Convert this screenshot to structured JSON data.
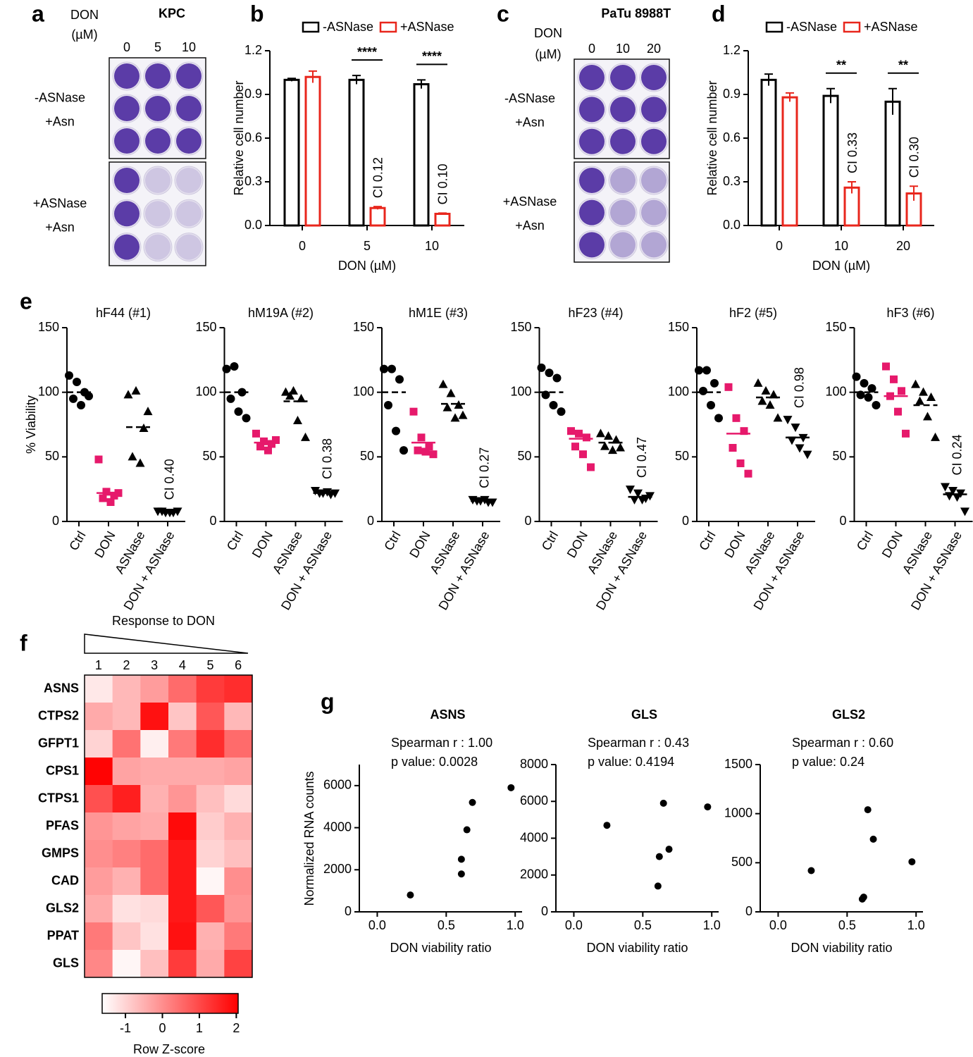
{
  "plates": [
    {
      "panel": "a",
      "title": "KPC",
      "dose_label": [
        "DON",
        "(µM)"
      ],
      "doses": [
        "0",
        "5",
        "10"
      ],
      "conditions": [
        [
          "-ASNase",
          "+Asn"
        ],
        [
          "+ASNase",
          "+Asn"
        ]
      ]
    },
    {
      "panel": "c",
      "title": "PaTu 8988T",
      "dose_label": [
        "DON",
        "(µM)"
      ],
      "doses": [
        "0",
        "10",
        "20"
      ],
      "conditions": [
        [
          "-ASNase",
          "+Asn"
        ],
        [
          "+ASNase",
          "+Asn"
        ]
      ]
    }
  ],
  "chart_data": [
    {
      "type": "bar",
      "panel": "b",
      "xlabel": "DON (µM)",
      "ylabel": "Relative cell number",
      "legend": "top",
      "categories": [
        "0",
        "5",
        "10"
      ],
      "ylim": [
        0,
        1.2
      ],
      "yticks": [
        {
          "value": 0,
          "label": "0.0"
        },
        0.3,
        0.6,
        0.9,
        1.2
      ],
      "significance": [
        null,
        "****",
        "****"
      ],
      "series": [
        {
          "name": "-ASNase",
          "color": "#000000",
          "values": [
            1.0,
            1.0,
            0.97
          ],
          "errors": [
            0.01,
            0.03,
            0.03
          ],
          "ci_labels": [
            null,
            null,
            null
          ]
        },
        {
          "name": "+ASNase",
          "color": "#e8261c",
          "values": [
            1.02,
            0.12,
            0.08
          ],
          "errors": [
            0.04,
            0.01,
            0.005
          ],
          "ci_labels": [
            null,
            "CI 0.12",
            "CI 0.10"
          ]
        }
      ]
    },
    {
      "type": "bar",
      "panel": "d",
      "xlabel": "DON (µM)",
      "ylabel": "Relative cell number",
      "legend": "top",
      "categories": [
        "0",
        "10",
        "20"
      ],
      "ylim": [
        0,
        1.2
      ],
      "yticks": [
        {
          "value": 0,
          "label": "0.0"
        },
        0.3,
        0.6,
        0.9,
        1.2
      ],
      "significance": [
        null,
        "**",
        "**"
      ],
      "series": [
        {
          "name": "-ASNase",
          "color": "#000000",
          "values": [
            1.0,
            0.89,
            0.85
          ],
          "errors": [
            0.04,
            0.05,
            0.09
          ],
          "ci_labels": [
            null,
            null,
            null
          ]
        },
        {
          "name": "+ASNase",
          "color": "#e8261c",
          "values": [
            0.88,
            0.26,
            0.22
          ],
          "errors": [
            0.03,
            0.04,
            0.05
          ],
          "ci_labels": [
            null,
            "CI 0.33",
            "CI 0.30"
          ]
        }
      ]
    },
    {
      "type": "strip",
      "panel": "e",
      "title": "hF44 (#1)",
      "ylabel": "% Viability",
      "categories": [
        "Ctrl",
        "DON",
        "ASNase",
        "DON + ASNase"
      ],
      "ylim": [
        0,
        150
      ],
      "yticks": [
        0,
        50,
        100,
        150
      ],
      "colors": [
        "#000000",
        "#e6196b",
        "#000000",
        "#000000"
      ],
      "markers": [
        "circle",
        "square",
        "triangle",
        "triangle-down"
      ],
      "values": [
        [
          113,
          108,
          100,
          95,
          90,
          97
        ],
        [
          48,
          23,
          20,
          18,
          15,
          22
        ],
        [
          98,
          101,
          72,
          50,
          45,
          85
        ],
        [
          8,
          7,
          7,
          8,
          7,
          8
        ]
      ],
      "means": [
        100,
        22,
        73,
        7.5
      ],
      "ci_label": "CI 0.40"
    },
    {
      "type": "strip",
      "title": "hM19A (#2)",
      "categories": [
        "Ctrl",
        "DON",
        "ASNase",
        "DON + ASNase"
      ],
      "ylim": [
        0,
        150
      ],
      "yticks": [
        0,
        50,
        100,
        150
      ],
      "colors": [
        "#000000",
        "#e6196b",
        "#000000",
        "#000000"
      ],
      "markers": [
        "circle",
        "square",
        "triangle",
        "triangle-down"
      ],
      "values": [
        [
          118,
          120,
          100,
          95,
          85,
          80
        ],
        [
          68,
          62,
          60,
          58,
          55,
          63
        ],
        [
          100,
          101,
          95,
          97,
          78,
          65
        ],
        [
          24,
          22,
          21,
          22,
          23,
          22
        ]
      ],
      "means": [
        100,
        61,
        93,
        22
      ],
      "ci_label": "CI 0.38"
    },
    {
      "type": "strip",
      "title": "hM1E (#3)",
      "categories": [
        "Ctrl",
        "DON",
        "ASNase",
        "DON + ASNase"
      ],
      "ylim": [
        0,
        150
      ],
      "yticks": [
        0,
        50,
        100,
        150
      ],
      "colors": [
        "#000000",
        "#e6196b",
        "#000000",
        "#000000"
      ],
      "markers": [
        "circle",
        "square",
        "triangle",
        "triangle-down"
      ],
      "values": [
        [
          118,
          118,
          110,
          90,
          70,
          55
        ],
        [
          85,
          65,
          58,
          55,
          54,
          52
        ],
        [
          106,
          99,
          90,
          88,
          80,
          82
        ],
        [
          17,
          16,
          15,
          16,
          17,
          15
        ]
      ],
      "means": [
        100,
        61,
        91,
        16
      ],
      "ci_label": "CI 0.27"
    },
    {
      "type": "strip",
      "title": "hF23 (#4)",
      "categories": [
        "Ctrl",
        "DON",
        "ASNase",
        "DON + ASNase"
      ],
      "ylim": [
        0,
        150
      ],
      "yticks": [
        0,
        50,
        100,
        150
      ],
      "colors": [
        "#000000",
        "#e6196b",
        "#000000",
        "#000000"
      ],
      "markers": [
        "circle",
        "square",
        "triangle",
        "triangle-down"
      ],
      "values": [
        [
          119,
          115,
          111,
          98,
          90,
          85
        ],
        [
          70,
          68,
          65,
          58,
          52,
          42
        ],
        [
          68,
          66,
          63,
          58,
          55,
          57
        ],
        [
          25,
          22,
          18,
          17,
          17,
          20
        ]
      ],
      "means": [
        100,
        64,
        61,
        19
      ],
      "ci_label": "CI 0.47"
    },
    {
      "type": "strip",
      "title": "hF2 (#5)",
      "categories": [
        "Ctrl",
        "DON",
        "ASNase",
        "DON + ASNase"
      ],
      "ylim": [
        0,
        150
      ],
      "yticks": [
        0,
        50,
        100,
        150
      ],
      "colors": [
        "#000000",
        "#e6196b",
        "#000000",
        "#000000"
      ],
      "markers": [
        "circle",
        "square",
        "triangle",
        "triangle-down"
      ],
      "values": [
        [
          117,
          117,
          107,
          101,
          90,
          80
        ],
        [
          104,
          80,
          70,
          57,
          45,
          37
        ],
        [
          107,
          101,
          98,
          93,
          90,
          80
        ],
        [
          79,
          73,
          65,
          63,
          57,
          52
        ]
      ],
      "means": [
        100,
        68,
        96,
        65
      ],
      "ci_label": "CI 0.98"
    },
    {
      "type": "strip",
      "title": "hF3 (#6)",
      "categories": [
        "Ctrl",
        "DON",
        "ASNase",
        "DON + ASNase"
      ],
      "ylim": [
        0,
        150
      ],
      "yticks": [
        0,
        50,
        100,
        150
      ],
      "colors": [
        "#000000",
        "#e6196b",
        "#000000",
        "#000000"
      ],
      "markers": [
        "circle",
        "square",
        "triangle",
        "triangle-down"
      ],
      "values": [
        [
          112,
          107,
          103,
          98,
          96,
          90
        ],
        [
          120,
          110,
          101,
          97,
          85,
          68
        ],
        [
          106,
          100,
          96,
          93,
          81,
          65
        ],
        [
          27,
          24,
          22,
          20,
          19,
          8
        ]
      ],
      "means": [
        100,
        97,
        90,
        21
      ],
      "ci_label": "CI 0.24"
    },
    {
      "type": "heatmap",
      "panel": "f",
      "title": "Response to DON",
      "columns": [
        "1",
        "2",
        "3",
        "4",
        "5",
        "6"
      ],
      "rows": [
        "ASNS",
        "CTPS2",
        "GFPT1",
        "CPS1",
        "CTPS1",
        "PFAS",
        "GMPS",
        "CAD",
        "GLS2",
        "PPAT",
        "GLS"
      ],
      "values": [
        [
          -1.3,
          -0.6,
          -0.2,
          0.5,
          1.2,
          1.4
        ],
        [
          -0.4,
          -0.6,
          1.8,
          -0.8,
          0.8,
          -0.6
        ],
        [
          -1.0,
          0.4,
          -1.4,
          0.3,
          1.4,
          0.5
        ],
        [
          2.0,
          -0.3,
          -0.4,
          -0.4,
          -0.4,
          -0.3
        ],
        [
          0.9,
          1.6,
          -0.5,
          -0.1,
          -0.7,
          -1.1
        ],
        [
          -0.1,
          -0.3,
          -0.4,
          1.9,
          -0.9,
          -0.5
        ],
        [
          0.0,
          0.2,
          0.5,
          1.7,
          -1.0,
          -0.7
        ],
        [
          -0.2,
          -0.5,
          0.5,
          1.7,
          -1.5,
          0.0
        ],
        [
          -0.4,
          -1.2,
          -1.1,
          1.7,
          0.8,
          -0.1
        ],
        [
          0.3,
          -0.8,
          -1.2,
          1.8,
          -0.5,
          0.3
        ],
        [
          0.1,
          -1.5,
          -0.7,
          1.2,
          -0.4,
          1.1
        ]
      ],
      "colors": [
        "#ffffff",
        "#ff0000"
      ],
      "clim": [
        -1.63,
        2.05
      ],
      "colorbar_ticks": [
        -1,
        0,
        1,
        2
      ],
      "colorbar_label": "Row Z-score"
    },
    {
      "type": "scatter",
      "panel": "g",
      "title": "ASNS",
      "annotations": [
        "Spearman r : 1.00",
        "p value: 0.0028"
      ],
      "xlabel": "DON viability ratio",
      "ylabel": "Normalized RNA counts",
      "color": "#000000",
      "x": [
        0.24,
        0.61,
        0.61,
        0.65,
        0.69,
        0.97
      ],
      "y": [
        800,
        1800,
        2500,
        3900,
        5200,
        5900
      ],
      "xlim": [
        -0.13,
        1.05
      ],
      "xticks": [
        {
          "value": 0,
          "label": "0.0"
        },
        0.5,
        {
          "value": 1,
          "label": "1.0"
        }
      ],
      "ylim": [
        0,
        7000
      ],
      "yticks": [
        0,
        2000,
        4000,
        6000
      ]
    },
    {
      "type": "scatter",
      "title": "GLS",
      "annotations": [
        "Spearman r : 0.43",
        "p value: 0.4194"
      ],
      "xlabel": "DON viability ratio",
      "color": "#000000",
      "x": [
        0.24,
        0.61,
        0.62,
        0.65,
        0.69,
        0.97
      ],
      "y": [
        4700,
        1400,
        3000,
        5900,
        3400,
        5700
      ],
      "xlim": [
        -0.13,
        1.05
      ],
      "xticks": [
        {
          "value": 0,
          "label": "0.0"
        },
        0.5,
        {
          "value": 1,
          "label": "1.0"
        }
      ],
      "ylim": [
        0,
        8000
      ],
      "yticks": [
        0,
        2000,
        4000,
        6000,
        8000
      ]
    },
    {
      "type": "scatter",
      "title": "GLS2",
      "annotations": [
        "Spearman r : 0.60",
        "p value: 0.24"
      ],
      "xlabel": "DON viability ratio",
      "color": "#000000",
      "x": [
        0.24,
        0.61,
        0.62,
        0.65,
        0.69,
        0.97
      ],
      "y": [
        420,
        130,
        150,
        1040,
        740,
        510
      ],
      "xlim": [
        -0.13,
        1.05
      ],
      "xticks": [
        {
          "value": 0,
          "label": "0.0"
        },
        0.5,
        {
          "value": 1,
          "label": "1.0"
        }
      ],
      "ylim": [
        0,
        1500
      ],
      "yticks": [
        0,
        500,
        1000,
        1500
      ]
    }
  ]
}
